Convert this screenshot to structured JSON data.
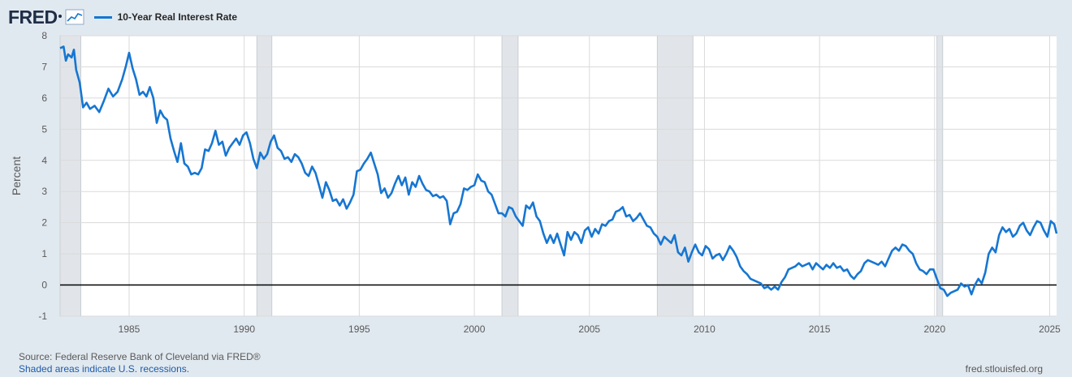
{
  "header": {
    "logo": "FRED",
    "legend_label": "10-Year Real Interest Rate",
    "graph_icon": "line-graph-icon"
  },
  "footer": {
    "source": "Source: Federal Reserve Bank of Cleveland via FRED®",
    "recessions_note": "Shaded areas indicate U.S. recessions.",
    "site": "fred.stlouisfed.org"
  },
  "colors": {
    "series": "#1676d2",
    "background": "#e1e9f0",
    "plot_background": "#ffffff",
    "recession_shade": "#e1e5e9"
  },
  "chart_data": {
    "type": "line",
    "title": "10-Year Real Interest Rate",
    "xlabel": "",
    "ylabel": "Percent",
    "xlim": [
      1982.0,
      2025.3
    ],
    "ylim": [
      -1,
      8
    ],
    "y_ticks": [
      -1,
      0,
      1,
      2,
      3,
      4,
      5,
      6,
      7,
      8
    ],
    "x_ticks": [
      1985,
      1990,
      1995,
      2000,
      2005,
      2010,
      2015,
      2020,
      2025
    ],
    "grid": true,
    "zero_line": true,
    "recessions": [
      [
        1982.0,
        1982.9
      ],
      [
        1990.55,
        1991.2
      ],
      [
        2001.2,
        2001.9
      ],
      [
        2007.95,
        2009.5
      ],
      [
        2020.1,
        2020.35
      ]
    ],
    "series": [
      {
        "name": "10-Year Real Interest Rate",
        "points": [
          [
            1982.0,
            7.6
          ],
          [
            1982.15,
            7.65
          ],
          [
            1982.25,
            7.2
          ],
          [
            1982.35,
            7.4
          ],
          [
            1982.5,
            7.3
          ],
          [
            1982.6,
            7.55
          ],
          [
            1982.7,
            6.9
          ],
          [
            1982.85,
            6.5
          ],
          [
            1983.0,
            5.7
          ],
          [
            1983.15,
            5.85
          ],
          [
            1983.3,
            5.65
          ],
          [
            1983.5,
            5.75
          ],
          [
            1983.7,
            5.55
          ],
          [
            1983.9,
            5.9
          ],
          [
            1984.1,
            6.3
          ],
          [
            1984.3,
            6.05
          ],
          [
            1984.5,
            6.2
          ],
          [
            1984.7,
            6.6
          ],
          [
            1984.85,
            7.0
          ],
          [
            1985.0,
            7.45
          ],
          [
            1985.15,
            6.95
          ],
          [
            1985.3,
            6.6
          ],
          [
            1985.45,
            6.1
          ],
          [
            1985.6,
            6.2
          ],
          [
            1985.75,
            6.05
          ],
          [
            1985.9,
            6.35
          ],
          [
            1986.05,
            6.0
          ],
          [
            1986.2,
            5.2
          ],
          [
            1986.35,
            5.6
          ],
          [
            1986.5,
            5.4
          ],
          [
            1986.65,
            5.3
          ],
          [
            1986.8,
            4.7
          ],
          [
            1986.95,
            4.3
          ],
          [
            1987.1,
            3.95
          ],
          [
            1987.25,
            4.55
          ],
          [
            1987.4,
            3.9
          ],
          [
            1987.55,
            3.8
          ],
          [
            1987.7,
            3.55
          ],
          [
            1987.85,
            3.6
          ],
          [
            1988.0,
            3.55
          ],
          [
            1988.15,
            3.75
          ],
          [
            1988.3,
            4.35
          ],
          [
            1988.45,
            4.3
          ],
          [
            1988.6,
            4.55
          ],
          [
            1988.75,
            4.95
          ],
          [
            1988.9,
            4.5
          ],
          [
            1989.05,
            4.6
          ],
          [
            1989.2,
            4.15
          ],
          [
            1989.35,
            4.4
          ],
          [
            1989.5,
            4.55
          ],
          [
            1989.65,
            4.7
          ],
          [
            1989.8,
            4.5
          ],
          [
            1989.95,
            4.8
          ],
          [
            1990.1,
            4.9
          ],
          [
            1990.25,
            4.55
          ],
          [
            1990.4,
            4.05
          ],
          [
            1990.55,
            3.75
          ],
          [
            1990.7,
            4.25
          ],
          [
            1990.85,
            4.05
          ],
          [
            1991.0,
            4.2
          ],
          [
            1991.15,
            4.6
          ],
          [
            1991.3,
            4.8
          ],
          [
            1991.45,
            4.4
          ],
          [
            1991.6,
            4.3
          ],
          [
            1991.75,
            4.05
          ],
          [
            1991.9,
            4.1
          ],
          [
            1992.05,
            3.95
          ],
          [
            1992.2,
            4.2
          ],
          [
            1992.35,
            4.1
          ],
          [
            1992.5,
            3.9
          ],
          [
            1992.65,
            3.6
          ],
          [
            1992.8,
            3.5
          ],
          [
            1992.95,
            3.8
          ],
          [
            1993.1,
            3.6
          ],
          [
            1993.25,
            3.2
          ],
          [
            1993.4,
            2.8
          ],
          [
            1993.55,
            3.3
          ],
          [
            1993.7,
            3.05
          ],
          [
            1993.85,
            2.7
          ],
          [
            1994.0,
            2.75
          ],
          [
            1994.15,
            2.55
          ],
          [
            1994.3,
            2.75
          ],
          [
            1994.45,
            2.45
          ],
          [
            1994.6,
            2.65
          ],
          [
            1994.75,
            2.9
          ],
          [
            1994.9,
            3.65
          ],
          [
            1995.05,
            3.7
          ],
          [
            1995.2,
            3.9
          ],
          [
            1995.35,
            4.05
          ],
          [
            1995.5,
            4.25
          ],
          [
            1995.65,
            3.9
          ],
          [
            1995.8,
            3.55
          ],
          [
            1995.95,
            2.95
          ],
          [
            1996.1,
            3.1
          ],
          [
            1996.25,
            2.8
          ],
          [
            1996.4,
            2.95
          ],
          [
            1996.55,
            3.25
          ],
          [
            1996.7,
            3.5
          ],
          [
            1996.85,
            3.2
          ],
          [
            1997.0,
            3.45
          ],
          [
            1997.15,
            2.9
          ],
          [
            1997.3,
            3.3
          ],
          [
            1997.45,
            3.15
          ],
          [
            1997.6,
            3.5
          ],
          [
            1997.75,
            3.25
          ],
          [
            1997.9,
            3.05
          ],
          [
            1998.05,
            3.0
          ],
          [
            1998.2,
            2.85
          ],
          [
            1998.35,
            2.9
          ],
          [
            1998.5,
            2.8
          ],
          [
            1998.65,
            2.85
          ],
          [
            1998.8,
            2.7
          ],
          [
            1998.95,
            1.95
          ],
          [
            1999.1,
            2.3
          ],
          [
            1999.25,
            2.35
          ],
          [
            1999.4,
            2.6
          ],
          [
            1999.55,
            3.1
          ],
          [
            1999.7,
            3.05
          ],
          [
            1999.85,
            3.15
          ],
          [
            2000.0,
            3.2
          ],
          [
            2000.15,
            3.55
          ],
          [
            2000.3,
            3.35
          ],
          [
            2000.45,
            3.3
          ],
          [
            2000.6,
            3.0
          ],
          [
            2000.75,
            2.9
          ],
          [
            2000.9,
            2.6
          ],
          [
            2001.05,
            2.3
          ],
          [
            2001.2,
            2.3
          ],
          [
            2001.35,
            2.2
          ],
          [
            2001.5,
            2.5
          ],
          [
            2001.65,
            2.45
          ],
          [
            2001.8,
            2.2
          ],
          [
            2001.95,
            2.05
          ],
          [
            2002.1,
            1.9
          ],
          [
            2002.25,
            2.55
          ],
          [
            2002.4,
            2.45
          ],
          [
            2002.55,
            2.65
          ],
          [
            2002.7,
            2.2
          ],
          [
            2002.85,
            2.05
          ],
          [
            2003.0,
            1.65
          ],
          [
            2003.15,
            1.35
          ],
          [
            2003.3,
            1.6
          ],
          [
            2003.45,
            1.35
          ],
          [
            2003.6,
            1.65
          ],
          [
            2003.75,
            1.3
          ],
          [
            2003.9,
            0.95
          ],
          [
            2004.05,
            1.7
          ],
          [
            2004.2,
            1.45
          ],
          [
            2004.35,
            1.7
          ],
          [
            2004.5,
            1.6
          ],
          [
            2004.65,
            1.35
          ],
          [
            2004.8,
            1.75
          ],
          [
            2004.95,
            1.85
          ],
          [
            2005.1,
            1.55
          ],
          [
            2005.25,
            1.8
          ],
          [
            2005.4,
            1.65
          ],
          [
            2005.55,
            1.95
          ],
          [
            2005.7,
            1.9
          ],
          [
            2005.85,
            2.05
          ],
          [
            2006.0,
            2.1
          ],
          [
            2006.15,
            2.35
          ],
          [
            2006.3,
            2.4
          ],
          [
            2006.45,
            2.5
          ],
          [
            2006.6,
            2.2
          ],
          [
            2006.75,
            2.25
          ],
          [
            2006.9,
            2.05
          ],
          [
            2007.05,
            2.15
          ],
          [
            2007.2,
            2.3
          ],
          [
            2007.35,
            2.1
          ],
          [
            2007.5,
            1.9
          ],
          [
            2007.65,
            1.85
          ],
          [
            2007.8,
            1.65
          ],
          [
            2007.95,
            1.55
          ],
          [
            2008.1,
            1.3
          ],
          [
            2008.25,
            1.55
          ],
          [
            2008.4,
            1.45
          ],
          [
            2008.55,
            1.35
          ],
          [
            2008.7,
            1.6
          ],
          [
            2008.85,
            1.05
          ],
          [
            2009.0,
            0.95
          ],
          [
            2009.15,
            1.2
          ],
          [
            2009.3,
            0.75
          ],
          [
            2009.45,
            1.05
          ],
          [
            2009.6,
            1.3
          ],
          [
            2009.75,
            1.05
          ],
          [
            2009.9,
            0.95
          ],
          [
            2010.05,
            1.25
          ],
          [
            2010.2,
            1.15
          ],
          [
            2010.35,
            0.85
          ],
          [
            2010.5,
            0.95
          ],
          [
            2010.65,
            1.0
          ],
          [
            2010.8,
            0.8
          ],
          [
            2010.95,
            1.0
          ],
          [
            2011.1,
            1.25
          ],
          [
            2011.25,
            1.1
          ],
          [
            2011.4,
            0.9
          ],
          [
            2011.55,
            0.6
          ],
          [
            2011.7,
            0.45
          ],
          [
            2011.85,
            0.35
          ],
          [
            2012.0,
            0.2
          ],
          [
            2012.15,
            0.15
          ],
          [
            2012.3,
            0.1
          ],
          [
            2012.45,
            0.05
          ],
          [
            2012.6,
            -0.1
          ],
          [
            2012.75,
            -0.05
          ],
          [
            2012.9,
            -0.15
          ],
          [
            2013.05,
            -0.05
          ],
          [
            2013.2,
            -0.15
          ],
          [
            2013.35,
            0.1
          ],
          [
            2013.5,
            0.25
          ],
          [
            2013.65,
            0.5
          ],
          [
            2013.8,
            0.55
          ],
          [
            2013.95,
            0.6
          ],
          [
            2014.1,
            0.7
          ],
          [
            2014.25,
            0.6
          ],
          [
            2014.4,
            0.65
          ],
          [
            2014.55,
            0.7
          ],
          [
            2014.7,
            0.5
          ],
          [
            2014.85,
            0.7
          ],
          [
            2015.0,
            0.6
          ],
          [
            2015.15,
            0.5
          ],
          [
            2015.3,
            0.65
          ],
          [
            2015.45,
            0.55
          ],
          [
            2015.6,
            0.7
          ],
          [
            2015.75,
            0.55
          ],
          [
            2015.9,
            0.6
          ],
          [
            2016.05,
            0.45
          ],
          [
            2016.2,
            0.5
          ],
          [
            2016.35,
            0.3
          ],
          [
            2016.5,
            0.2
          ],
          [
            2016.65,
            0.35
          ],
          [
            2016.8,
            0.45
          ],
          [
            2016.95,
            0.7
          ],
          [
            2017.1,
            0.8
          ],
          [
            2017.25,
            0.75
          ],
          [
            2017.4,
            0.7
          ],
          [
            2017.55,
            0.65
          ],
          [
            2017.7,
            0.75
          ],
          [
            2017.85,
            0.6
          ],
          [
            2018.0,
            0.85
          ],
          [
            2018.15,
            1.1
          ],
          [
            2018.3,
            1.2
          ],
          [
            2018.45,
            1.1
          ],
          [
            2018.6,
            1.3
          ],
          [
            2018.75,
            1.25
          ],
          [
            2018.9,
            1.1
          ],
          [
            2019.05,
            1.0
          ],
          [
            2019.2,
            0.7
          ],
          [
            2019.35,
            0.5
          ],
          [
            2019.5,
            0.45
          ],
          [
            2019.65,
            0.35
          ],
          [
            2019.8,
            0.5
          ],
          [
            2019.95,
            0.5
          ],
          [
            2020.1,
            0.2
          ],
          [
            2020.25,
            -0.1
          ],
          [
            2020.4,
            -0.15
          ],
          [
            2020.55,
            -0.35
          ],
          [
            2020.7,
            -0.25
          ],
          [
            2020.85,
            -0.2
          ],
          [
            2021.0,
            -0.15
          ],
          [
            2021.15,
            0.05
          ],
          [
            2021.3,
            -0.05
          ],
          [
            2021.45,
            0.0
          ],
          [
            2021.6,
            -0.3
          ],
          [
            2021.75,
            0.0
          ],
          [
            2021.9,
            0.2
          ],
          [
            2022.05,
            0.05
          ],
          [
            2022.2,
            0.4
          ],
          [
            2022.35,
            1.0
          ],
          [
            2022.5,
            1.2
          ],
          [
            2022.65,
            1.05
          ],
          [
            2022.8,
            1.6
          ],
          [
            2022.95,
            1.85
          ],
          [
            2023.1,
            1.7
          ],
          [
            2023.25,
            1.8
          ],
          [
            2023.4,
            1.55
          ],
          [
            2023.55,
            1.65
          ],
          [
            2023.7,
            1.9
          ],
          [
            2023.85,
            2.0
          ],
          [
            2024.0,
            1.75
          ],
          [
            2024.15,
            1.6
          ],
          [
            2024.3,
            1.85
          ],
          [
            2024.45,
            2.05
          ],
          [
            2024.6,
            2.0
          ],
          [
            2024.75,
            1.75
          ],
          [
            2024.9,
            1.55
          ],
          [
            2025.05,
            2.05
          ],
          [
            2025.2,
            1.95
          ],
          [
            2025.3,
            1.65
          ]
        ]
      }
    ]
  }
}
